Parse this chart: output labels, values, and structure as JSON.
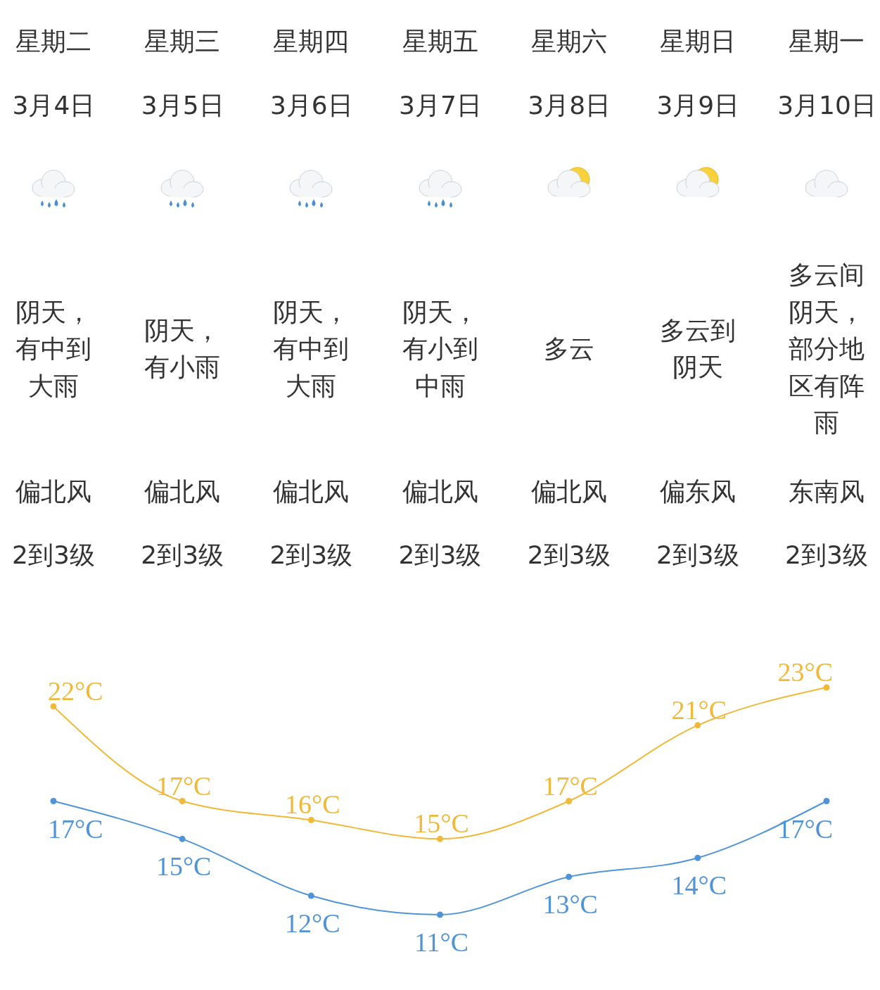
{
  "chart_data": {
    "type": "line",
    "categories": [
      "3月4日",
      "3月5日",
      "3月6日",
      "3月7日",
      "3月8日",
      "3月9日",
      "3月10日"
    ],
    "series": [
      {
        "color": "#f0b93a",
        "values": [
          22,
          17,
          16,
          15,
          17,
          21,
          23
        ],
        "value_labels": [
          "22°C",
          "17°C",
          "16°C",
          "15°C",
          "17°C",
          "21°C",
          "23°C"
        ]
      },
      {
        "color": "#4f94d8",
        "values": [
          17,
          15,
          12,
          11,
          13,
          14,
          17
        ],
        "value_labels": [
          "17°C",
          "15°C",
          "12°C",
          "11°C",
          "13°C",
          "14°C",
          "17°C"
        ]
      }
    ],
    "annotations": [
      "星期二",
      "阴天，有中到大雨",
      "偏北风",
      "2到3级",
      "星期三",
      "阴天，有小雨",
      "偏北风",
      "2到3级",
      "星期四",
      "阴天，有中到大雨",
      "偏北风",
      "2到3级",
      "星期五",
      "阴天，有小到中雨",
      "偏北风",
      "2到3级",
      "星期六",
      "多云",
      "偏北风",
      "2到3级",
      "星期日",
      "多云到阴天",
      "偏东风",
      "2到3级",
      "星期一",
      "多云间阴天，部分地区有阵雨",
      "东南风",
      "2到3级"
    ],
    "marker": "circle",
    "line_style": "solid"
  }
}
